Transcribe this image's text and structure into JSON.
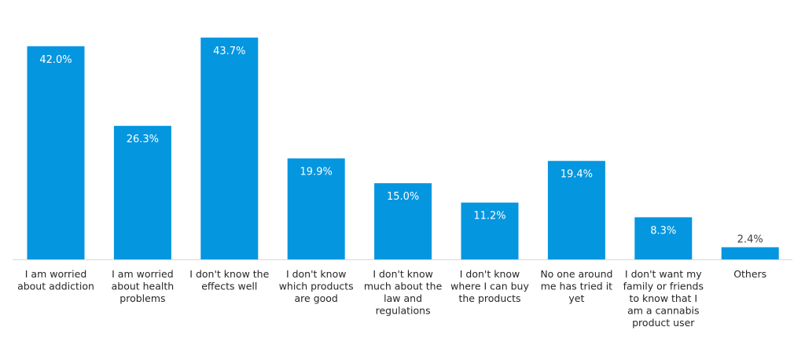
{
  "chart_data": {
    "type": "bar",
    "title": "",
    "xlabel": "",
    "ylabel": "",
    "ylim": [
      0,
      48
    ],
    "grid": false,
    "legend": "none",
    "bar_color": "#0596e0",
    "axis_color": "#d9d9d9",
    "categories": [
      [
        "I am worried",
        "about addiction"
      ],
      [
        "I am worried",
        "about health",
        "problems"
      ],
      [
        "I don't know the",
        "effects well"
      ],
      [
        "I don't know",
        "which products",
        "are good"
      ],
      [
        "I don't know",
        "much about the",
        "law and",
        "regulations"
      ],
      [
        "I don't know",
        "where I can buy",
        "the products"
      ],
      [
        "No one around",
        "me has tried it",
        "yet"
      ],
      [
        "I don't want my",
        "family or friends",
        "to know that I",
        "am a cannabis",
        "product user"
      ],
      [
        "Others"
      ]
    ],
    "values": [
      42.0,
      26.3,
      43.7,
      19.9,
      15.0,
      11.2,
      19.4,
      8.3,
      2.4
    ],
    "value_labels": [
      "42.0%",
      "26.3%",
      "43.7%",
      "19.9%",
      "15.0%",
      "11.2%",
      "19.4%",
      "8.3%",
      "2.4%"
    ]
  }
}
